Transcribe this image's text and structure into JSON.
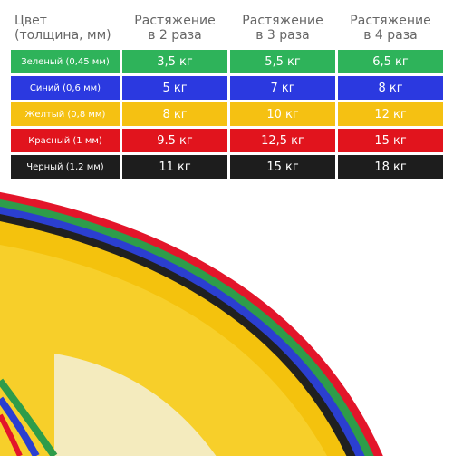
{
  "table": {
    "header": [
      "Цвет\n(толщина, мм)",
      "Растяжение\nв 2 раза",
      "Растяжение\nв 3 раза",
      "Растяжение\nв 4 раза"
    ],
    "rows": [
      [
        "Зеленый (0,45 мм)",
        "3,5 кг",
        "5,5 кг",
        "6,5 кг"
      ],
      [
        "Синий (0,6 мм)",
        "5 кг",
        "7 кг",
        "8 кг"
      ],
      [
        "Желтый (0,8 мм)",
        "8 кг",
        "10 кг",
        "12 кг"
      ],
      [
        "Красный (1 мм)",
        "9.5 кг",
        "12,5 кг",
        "15 кг"
      ],
      [
        "Черный (1,2 мм)",
        "11 кг",
        "15 кг",
        "18 кг"
      ]
    ]
  }
}
